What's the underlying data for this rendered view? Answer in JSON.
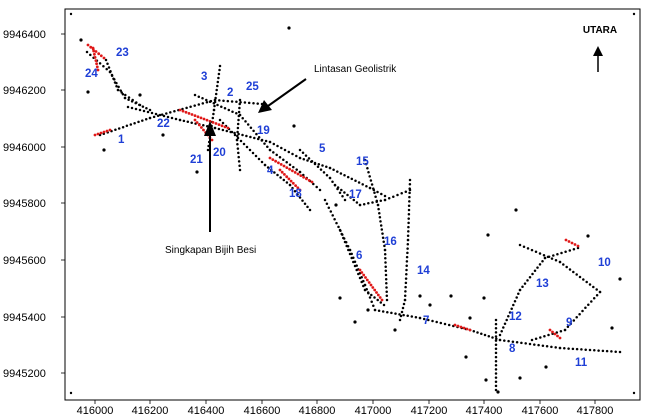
{
  "map": {
    "north_label": "UTARA",
    "annotations": {
      "geoelectric_line": "Lintasan Geolistrik",
      "iron_ore_outcrop": "Singkapan Bijih Besi"
    },
    "x_axis_ticks": [
      "416000",
      "416200",
      "416400",
      "416600",
      "416800",
      "417000",
      "417200",
      "417400",
      "417600",
      "417800"
    ],
    "y_axis_ticks": [
      "9946400",
      "9946200",
      "9946000",
      "9945800",
      "9945600",
      "9945400",
      "9945200"
    ],
    "line_numbers": [
      "1",
      "2",
      "3",
      "4",
      "5",
      "6",
      "7",
      "8",
      "9",
      "10",
      "11",
      "12",
      "13",
      "14",
      "15",
      "16",
      "17",
      "18",
      "19",
      "20",
      "21",
      "22",
      "23",
      "24",
      "25"
    ],
    "colors": {
      "line_label": "#1f3fd6",
      "survey_point": "#000000",
      "outcrop_point": "#e01818",
      "frame": "#000000"
    }
  }
}
